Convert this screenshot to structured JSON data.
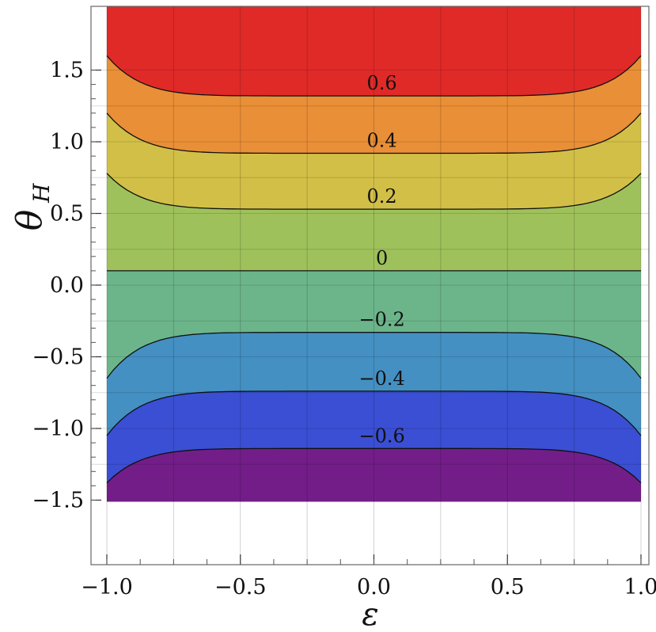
{
  "chart_data": {
    "type": "contour",
    "xlabel": "ε",
    "ylabel": "θ",
    "ylabel_subscript": "H",
    "xlim": [
      -1.0,
      1.0
    ],
    "ylim": [
      -1.5,
      1.6
    ],
    "x_ticks": [
      -1.0,
      -0.5,
      0.0,
      0.5,
      1.0
    ],
    "x_tick_labels": [
      "−1.0",
      "−0.5",
      "0.0",
      "0.5",
      "1.0"
    ],
    "y_ticks": [
      -1.5,
      -1.0,
      -0.5,
      0.0,
      0.5,
      1.0,
      1.5
    ],
    "y_tick_labels": [
      "−1.5",
      "−1.0",
      "−0.5",
      "0.0",
      "0.5",
      "1.0",
      "1.5"
    ],
    "grid": true,
    "contours": [
      {
        "level_label": "0.6",
        "center_y": 1.32,
        "edge_y": 1.6,
        "upper": true
      },
      {
        "level_label": "0.4",
        "center_y": 0.92,
        "edge_y": 1.2,
        "upper": true
      },
      {
        "level_label": "0.2",
        "center_y": 0.53,
        "edge_y": 0.78,
        "upper": true
      },
      {
        "level_label": "0",
        "center_y": 0.1,
        "edge_y": 0.1,
        "upper": true
      },
      {
        "level_label": "−0.2",
        "center_y": -0.33,
        "edge_y": -0.65,
        "upper": false
      },
      {
        "level_label": "−0.4",
        "center_y": -0.74,
        "edge_y": -1.05,
        "upper": false
      },
      {
        "level_label": "−0.6",
        "center_y": -1.14,
        "edge_y": -1.38,
        "upper": false
      }
    ],
    "band_colors": [
      "#e02a28",
      "#e98f37",
      "#d2bf47",
      "#9fc15b",
      "#6cb58b",
      "#4490c2",
      "#3a4fd3",
      "#731e88"
    ]
  }
}
